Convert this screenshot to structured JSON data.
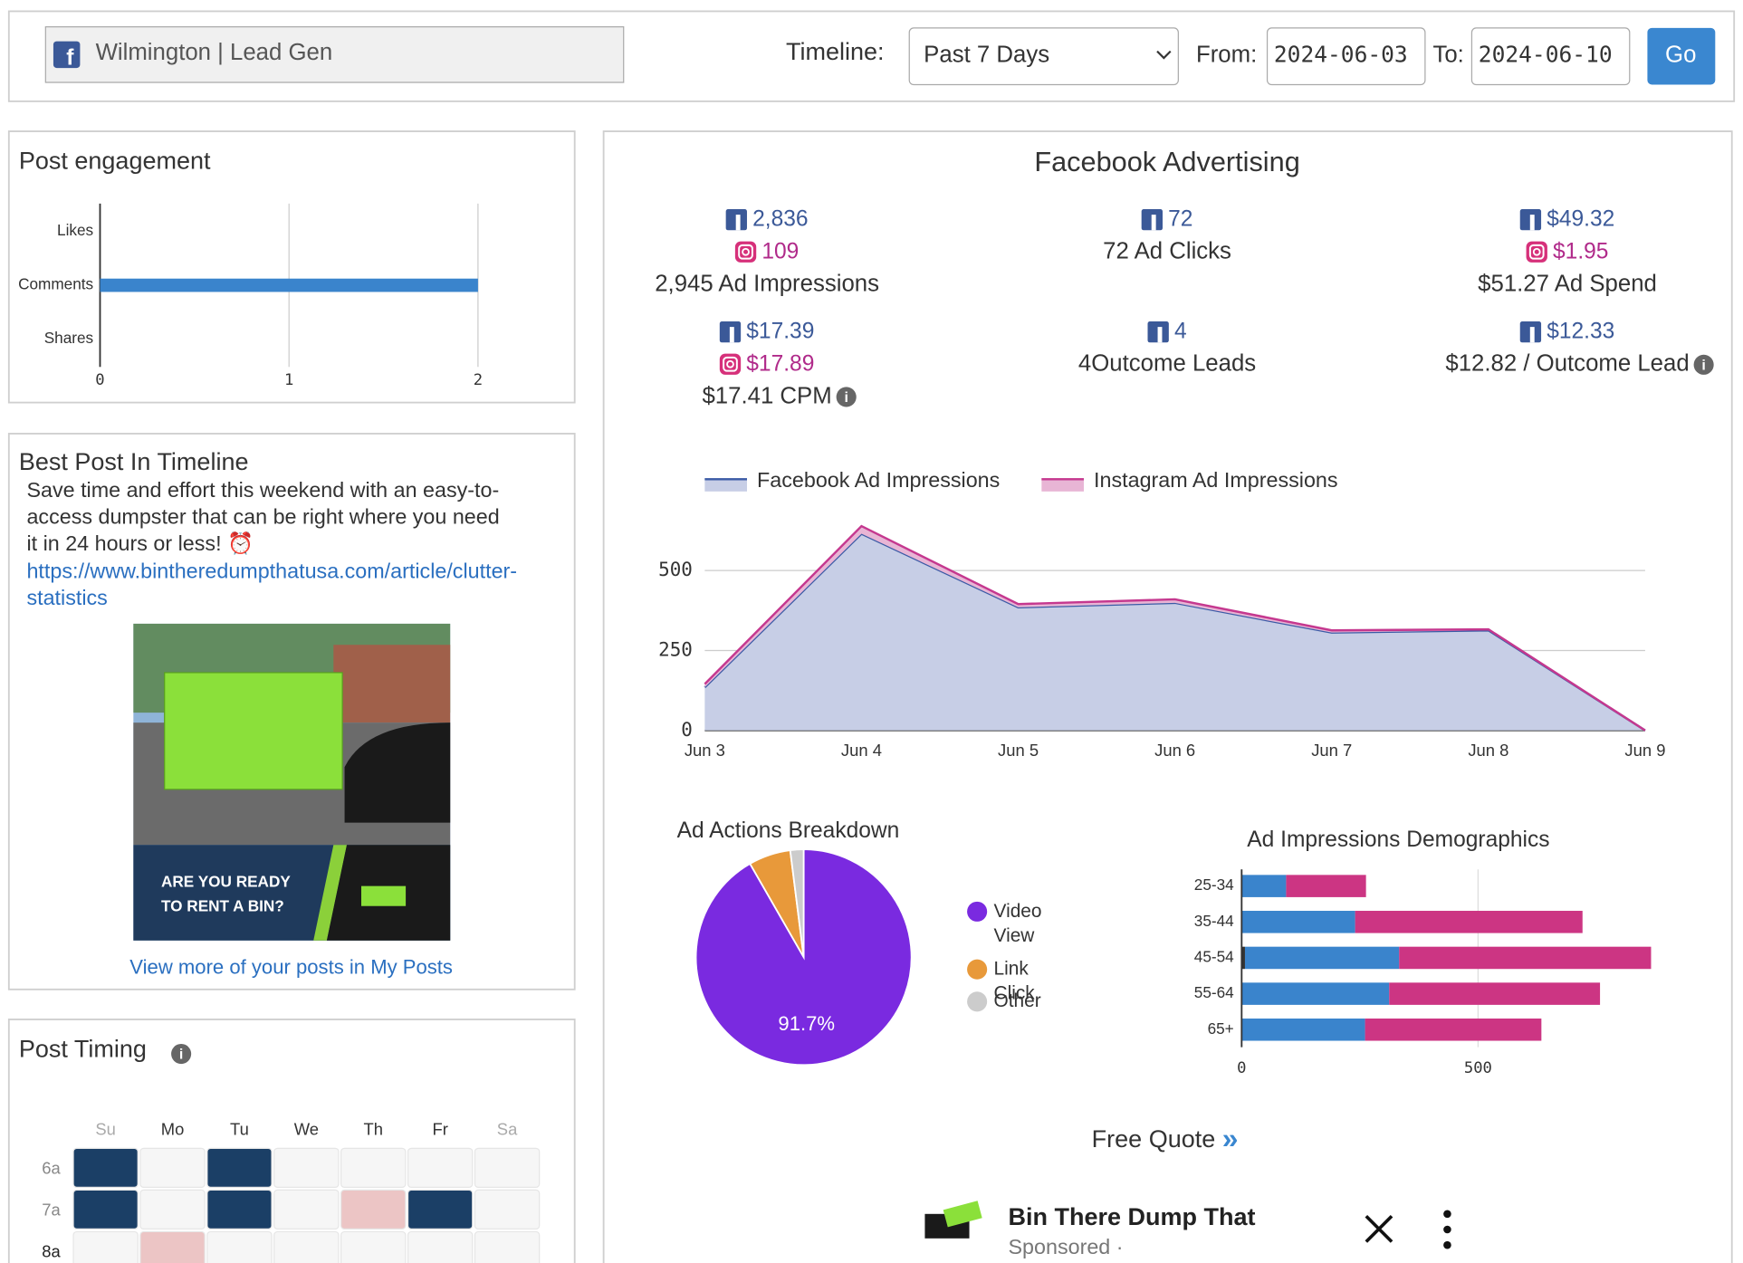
{
  "header": {
    "account": "Wilmington | Lead Gen",
    "timeline_label": "Timeline:",
    "timeline": "Past 7 Days",
    "from_label": "From:",
    "from": "2024-06-03",
    "to_label": "To:",
    "to": "2024-06-10",
    "go": "Go"
  },
  "best_post": {
    "title": "Best Post In Timeline",
    "text": [
      "Save time and effort this weekend with an easy-to-",
      "access dumpster that can be right where you need",
      "it in 24 hours or less! ⏰"
    ],
    "link": [
      "https://www.bintheredumpthatusa.com/article/clutter-",
      "statistics"
    ],
    "image_text": [
      "ARE YOU READY",
      "TO RENT A BIN?"
    ],
    "more": "View more of your posts in My Posts"
  },
  "post_timing": {
    "title": "Post Timing",
    "days": [
      "Su",
      "Mo",
      "Tu",
      "We",
      "Th",
      "Fr",
      "Sa"
    ],
    "hours": [
      "6a",
      "7a",
      "8a"
    ],
    "levels": [
      [
        2,
        0,
        2,
        0,
        0,
        0,
        0
      ],
      [
        2,
        0,
        2,
        0,
        1,
        2,
        0
      ],
      [
        0,
        1,
        0,
        0,
        0,
        0,
        0
      ]
    ],
    "colors": [
      "#f6f6f6",
      "#ecc5c5",
      "#1b3f66"
    ]
  },
  "facebook_advertising": {
    "title": "Facebook Advertising",
    "stats": [
      {
        "fb": "2,836",
        "ig": "109",
        "label": "2,945 Ad Impressions"
      },
      {
        "fb": "72",
        "label": "72 Ad Clicks"
      },
      {
        "fb": "$49.32",
        "ig": "$1.95",
        "label": "$51.27 Ad Spend"
      },
      {
        "fb": "$17.39",
        "ig": "$17.89",
        "label": "$17.41 CPM",
        "info": true
      },
      {
        "fb": "4",
        "label": "4Outcome Leads"
      },
      {
        "fb": "$12.33",
        "label": "$12.82 / Outcome Lead",
        "info": true
      }
    ]
  },
  "chart_data": [
    {
      "type": "hbar",
      "title": "Post engagement",
      "categories": [
        "Likes",
        "Comments",
        "Shares"
      ],
      "values": [
        0,
        2,
        0
      ],
      "color": "#3a84cc",
      "xlim": [
        0,
        2
      ],
      "xticks": [
        0,
        1,
        2
      ],
      "grid": true
    },
    {
      "type": "area",
      "stacked": true,
      "categories": [
        "Jun 3",
        "Jun 4",
        "Jun 5",
        "Jun 6",
        "Jun 7",
        "Jun 8",
        "Jun 9"
      ],
      "series": [
        {
          "name": "Facebook Ad Impressions",
          "color": "#3b5ba6",
          "fill": "#c7cee6",
          "values": [
            135,
            615,
            385,
            399,
            306,
            313,
            0
          ]
        },
        {
          "name": "Instagram Ad Impressions",
          "color": "#c5388f",
          "fill": "#e8b5d5",
          "values": [
            10,
            24,
            10,
            11,
            7,
            3,
            0
          ]
        }
      ],
      "ylim": [
        0,
        650
      ],
      "yticks": [
        0,
        250,
        500
      ],
      "grid": true
    },
    {
      "type": "pie",
      "title": "Ad Actions Breakdown",
      "categories": [
        "Video View",
        "Link Click",
        "Other"
      ],
      "values": [
        91.7,
        6.3,
        2.0
      ],
      "value_labels": [
        "91.7%",
        null,
        null
      ],
      "colors": [
        "#7a2ae0",
        "#e8993a",
        "#cccccc"
      ]
    },
    {
      "type": "stacked_hbar",
      "title": "Ad Impressions Demographics",
      "categories": [
        "25-34",
        "35-44",
        "45-54",
        "55-64",
        "65+"
      ],
      "series": [
        {
          "color": "#333333",
          "values": [
            0,
            0,
            7,
            0,
            0
          ]
        },
        {
          "color": "#3a84cc",
          "values": [
            94,
            240,
            326,
            312,
            261
          ]
        },
        {
          "color": "#cc3583",
          "values": [
            169,
            481,
            533,
            446,
            373
          ]
        }
      ],
      "xlim": [
        0,
        870
      ],
      "xticks": [
        0,
        500
      ],
      "grid": true
    }
  ],
  "free_quote": {
    "label": "Free Quote",
    "arrow": "»"
  },
  "ad": {
    "name": "Bin There Dump That",
    "sponsored": "Sponsored ·"
  }
}
